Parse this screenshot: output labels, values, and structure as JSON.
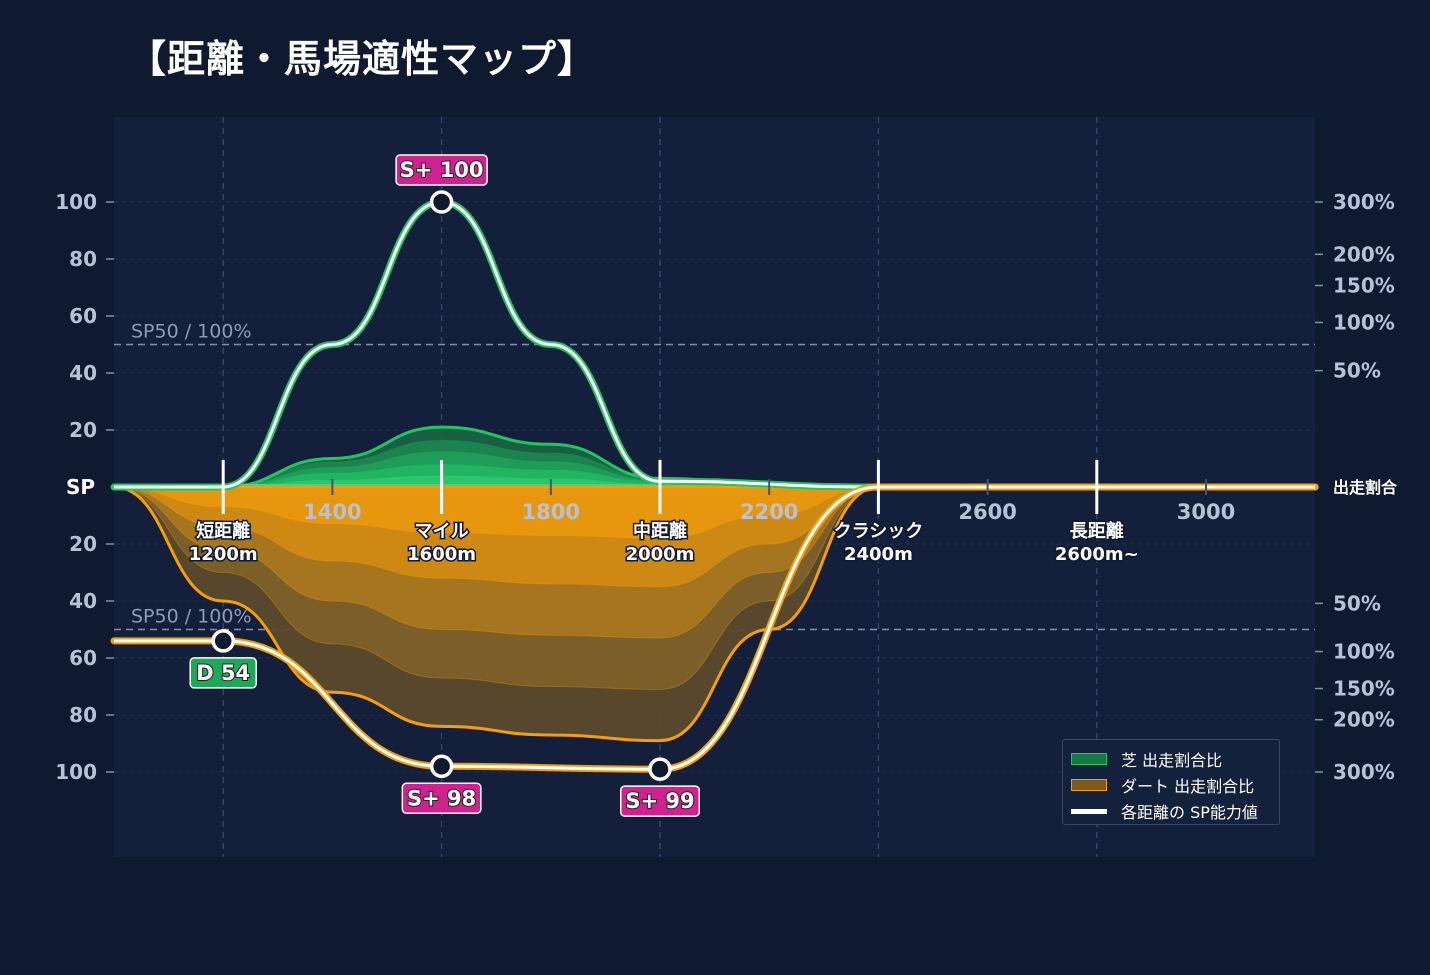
{
  "title": "【距離・馬場適性マップ】",
  "legend": {
    "turf": "芝 出走割合比",
    "dirt": "ダート 出走割合比",
    "sp": "各距離の SP能力値"
  },
  "colors": {
    "background": "#0f1930",
    "plot_bg": "#131f3b",
    "turf": "#22c55e",
    "dirt": "#f59e0b",
    "badge_pink": "#d1208f",
    "badge_green": "#1fa85a"
  },
  "chart_data": {
    "type": "area",
    "x_ticks": [
      1400,
      1800,
      2200,
      2600,
      3000
    ],
    "x_tick_labels": [
      "1400",
      "1800",
      "2200",
      "2600",
      "3000"
    ],
    "xlim": [
      1000,
      3200
    ],
    "categories": [
      {
        "x": 1200,
        "label": "短距離",
        "sub": "1200m"
      },
      {
        "x": 1600,
        "label": "マイル",
        "sub": "1600m"
      },
      {
        "x": 2000,
        "label": "中距離",
        "sub": "2000m"
      },
      {
        "x": 2400,
        "label": "クラシック",
        "sub": "2400m"
      },
      {
        "x": 2800,
        "label": "長距離",
        "sub": "2600m~"
      }
    ],
    "left_axis": {
      "center_label": "SP",
      "ticks": [
        "100",
        "80",
        "60",
        "40",
        "20"
      ],
      "ylim": [
        0,
        100
      ]
    },
    "right_axis": {
      "center_label": "出走割合",
      "upper_ticks": [
        "300%",
        "200%",
        "150%",
        "100%",
        "50%"
      ],
      "lower_ticks": [
        "50%",
        "100%",
        "150%",
        "200%",
        "300%"
      ]
    },
    "reference_lines": [
      {
        "side": "turf",
        "value": 50,
        "label": "SP50 / 100%"
      },
      {
        "side": "dirt",
        "value": 50,
        "label": "SP50 / 100%"
      }
    ],
    "series": [
      {
        "name": "芝 出走割合比",
        "side": "turf",
        "layers": [
          {
            "x": [
              1000,
              1200,
              1400,
              1600,
              1800,
              2000,
              2200,
              2400,
              3200
            ],
            "values": [
              0,
              0,
              10,
              21,
              15,
              3,
              1,
              0,
              0
            ]
          },
          {
            "x": [
              1000,
              1200,
              1400,
              1600,
              1800,
              2000,
              2200,
              2400,
              3200
            ],
            "values": [
              0,
              0,
              9,
              16.5,
              12,
              3,
              1,
              0,
              0
            ]
          },
          {
            "x": [
              1000,
              1200,
              1400,
              1600,
              1800,
              2000,
              2200,
              2400,
              3200
            ],
            "values": [
              0,
              0,
              7,
              12.5,
              9,
              2.5,
              0.8,
              0,
              0
            ]
          },
          {
            "x": [
              1000,
              1200,
              1400,
              1600,
              1800,
              2000,
              2200,
              2400,
              3200
            ],
            "values": [
              0,
              0,
              5,
              8,
              6,
              2,
              0.5,
              0,
              0
            ]
          },
          {
            "x": [
              1000,
              1200,
              1400,
              1600,
              1800,
              2000,
              2200,
              2400,
              3200
            ],
            "values": [
              0,
              0,
              2.5,
              4,
              3,
              1,
              0.3,
              0,
              0
            ]
          }
        ]
      },
      {
        "name": "ダート 出走割合比",
        "side": "dirt",
        "layers": [
          {
            "x": [
              1000,
              1200,
              1400,
              1600,
              1800,
              2000,
              2200,
              2400,
              3200
            ],
            "values": [
              0,
              40,
              72,
              84,
              87,
              89,
              50,
              0,
              0
            ]
          },
          {
            "x": [
              1000,
              1200,
              1400,
              1600,
              1800,
              2000,
              2200,
              2400,
              3200
            ],
            "values": [
              0,
              30,
              55,
              67,
              70,
              71,
              40,
              0,
              0
            ]
          },
          {
            "x": [
              1000,
              1200,
              1400,
              1600,
              1800,
              2000,
              2200,
              2400,
              3200
            ],
            "values": [
              0,
              22,
              40,
              50,
              52,
              53,
              30,
              0,
              0
            ]
          },
          {
            "x": [
              1000,
              1200,
              1400,
              1600,
              1800,
              2000,
              2200,
              2400,
              3200
            ],
            "values": [
              0,
              14,
              26,
              32,
              34,
              35,
              20,
              0,
              0
            ]
          },
          {
            "x": [
              1000,
              1200,
              1400,
              1600,
              1800,
              2000,
              2200,
              2400,
              3200
            ],
            "values": [
              0,
              7,
              13,
              16,
              17,
              18,
              10,
              0,
              0
            ]
          }
        ]
      },
      {
        "name": "各距離の SP能力値",
        "side": "turf",
        "x": [
          1000,
          1200,
          1400,
          1600,
          1800,
          2000,
          2400,
          2800,
          3200
        ],
        "values": [
          0,
          0,
          50,
          100,
          50,
          2,
          0,
          0,
          0
        ]
      },
      {
        "name": "各距離の SP能力値",
        "side": "dirt",
        "x": [
          1000,
          1200,
          1600,
          2000,
          2400,
          2800,
          3200
        ],
        "values": [
          54,
          54,
          98,
          99,
          0,
          0,
          0
        ]
      }
    ],
    "annotations": [
      {
        "side": "turf",
        "x": 1600,
        "value": 100,
        "label": "S+ 100",
        "style": "pink"
      },
      {
        "side": "dirt",
        "x": 1200,
        "value": 54,
        "label": "D 54",
        "style": "green"
      },
      {
        "side": "dirt",
        "x": 1600,
        "value": 98,
        "label": "S+ 98",
        "style": "pink"
      },
      {
        "side": "dirt",
        "x": 2000,
        "value": 99,
        "label": "S+ 99",
        "style": "pink"
      }
    ]
  }
}
